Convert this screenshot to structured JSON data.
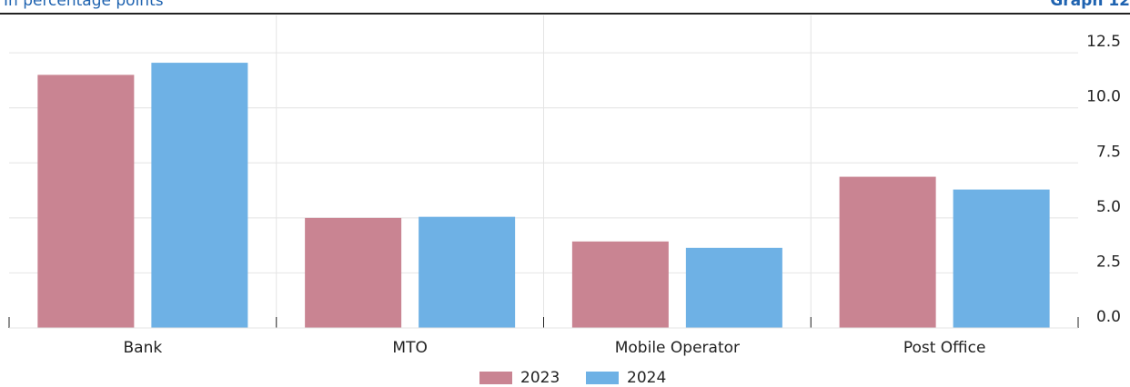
{
  "chart_data": {
    "type": "bar",
    "subtitle": "In percentage points",
    "graph_label": "Graph 12",
    "categories": [
      "Bank",
      "MTO",
      "Mobile Operator",
      "Post Office"
    ],
    "series": [
      {
        "name": "2023",
        "color": "#c98492",
        "values": [
          11.5,
          5.0,
          3.93,
          6.87
        ]
      },
      {
        "name": "2024",
        "color": "#6eb1e5",
        "values": [
          12.05,
          5.05,
          3.64,
          6.29
        ]
      }
    ],
    "ylim": [
      0,
      14.2
    ],
    "yticks": [
      {
        "value": 0,
        "label": "0.0"
      },
      2.5,
      {
        "value": 5,
        "label": "5.0"
      },
      7.5,
      {
        "value": 10,
        "label": "10.0"
      },
      12.5
    ],
    "grid": true
  }
}
